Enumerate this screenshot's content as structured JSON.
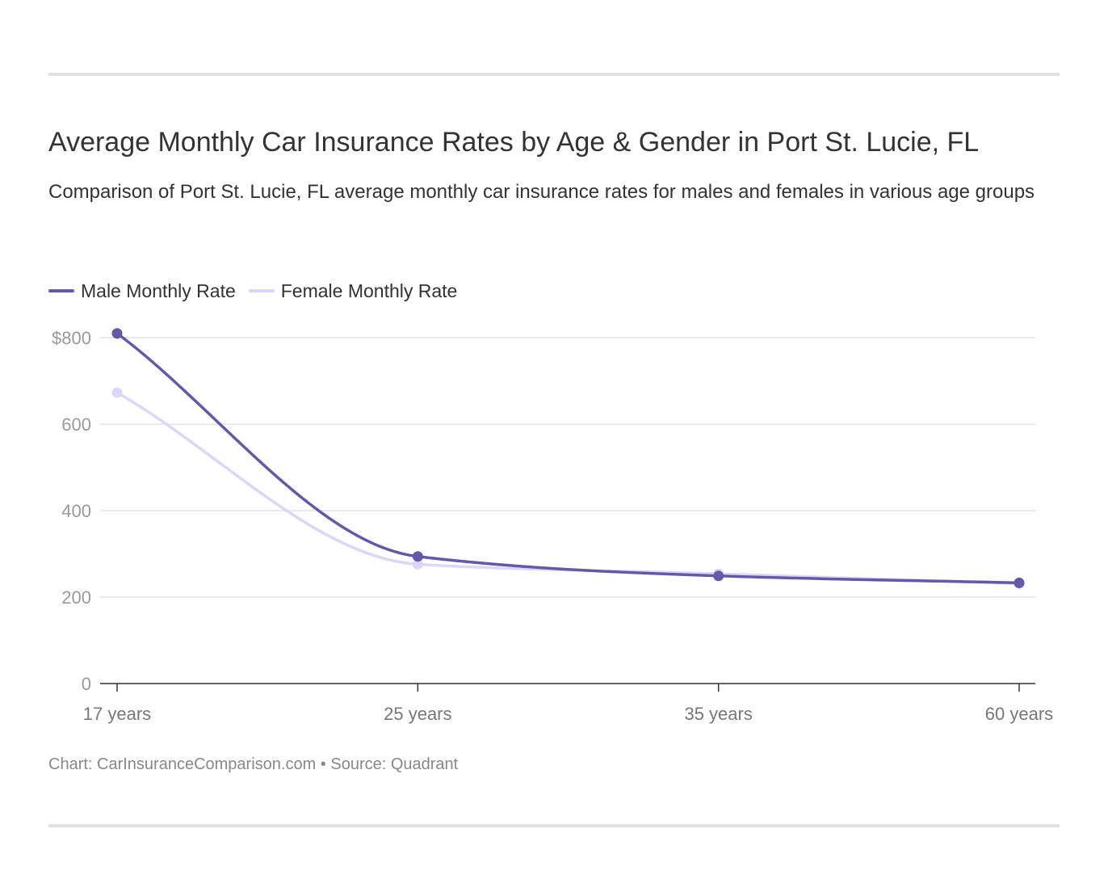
{
  "title": "Average Monthly Car Insurance Rates by Age & Gender in Port St. Lucie, FL",
  "subtitle": "Comparison of Port St. Lucie, FL average monthly car insurance rates for males and females in various age groups",
  "footer": "Chart: CarInsuranceComparison.com • Source: Quadrant",
  "colors": {
    "male": "#6459a8",
    "female": "#ddd6f7",
    "grid": "#e3e3e3",
    "axis": "#333333"
  },
  "chart_data": {
    "type": "line",
    "categories": [
      "17 years",
      "25 years",
      "35 years",
      "60 years"
    ],
    "y_ticks": [
      {
        "value": 0,
        "label": "0"
      },
      {
        "value": 200,
        "label": "200"
      },
      {
        "value": 400,
        "label": "400"
      },
      {
        "value": 600,
        "label": "600"
      },
      {
        "value": 800,
        "label": "$800"
      }
    ],
    "ylim": [
      0,
      800
    ],
    "grid": true,
    "legend_position": "top-left",
    "series": [
      {
        "name": "Male Monthly Rate",
        "color": "#6459a8",
        "values": [
          810,
          294,
          249,
          233
        ]
      },
      {
        "name": "Female Monthly Rate",
        "color": "#ddd6f7",
        "values": [
          673,
          276,
          254,
          231
        ]
      }
    ]
  }
}
